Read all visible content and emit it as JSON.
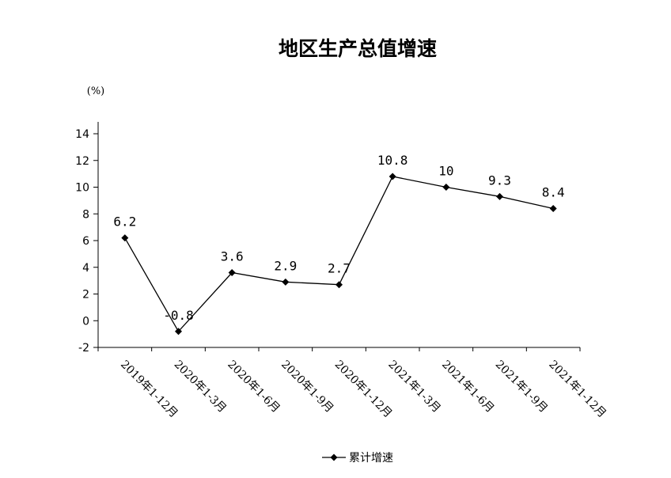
{
  "chart_data": {
    "type": "line",
    "title": "地区生产总值增速",
    "unit_label": "(%)",
    "categories": [
      "2019年1-12月",
      "2020年1-3月",
      "2020年1-6月",
      "2020年1-9月",
      "2020年1-12月",
      "2021年1-3月",
      "2021年1-6月",
      "2021年1-9月",
      "2021年1-12月"
    ],
    "series": [
      {
        "name": "累计增速",
        "values": [
          6.2,
          -0.8,
          3.6,
          2.9,
          2.7,
          10.8,
          10,
          9.3,
          8.4
        ],
        "labels": [
          "6.2",
          "-0.8",
          "3.6",
          "2.9",
          "2.7",
          "10.8",
          "10",
          "9.3",
          "8.4"
        ]
      }
    ],
    "ylim": [
      -2,
      14
    ],
    "yticks": [
      "-2",
      "0",
      "2",
      "4",
      "6",
      "8",
      "10",
      "12",
      "14"
    ],
    "grid": false,
    "legend_position": "bottom",
    "line_color": "#000000"
  }
}
